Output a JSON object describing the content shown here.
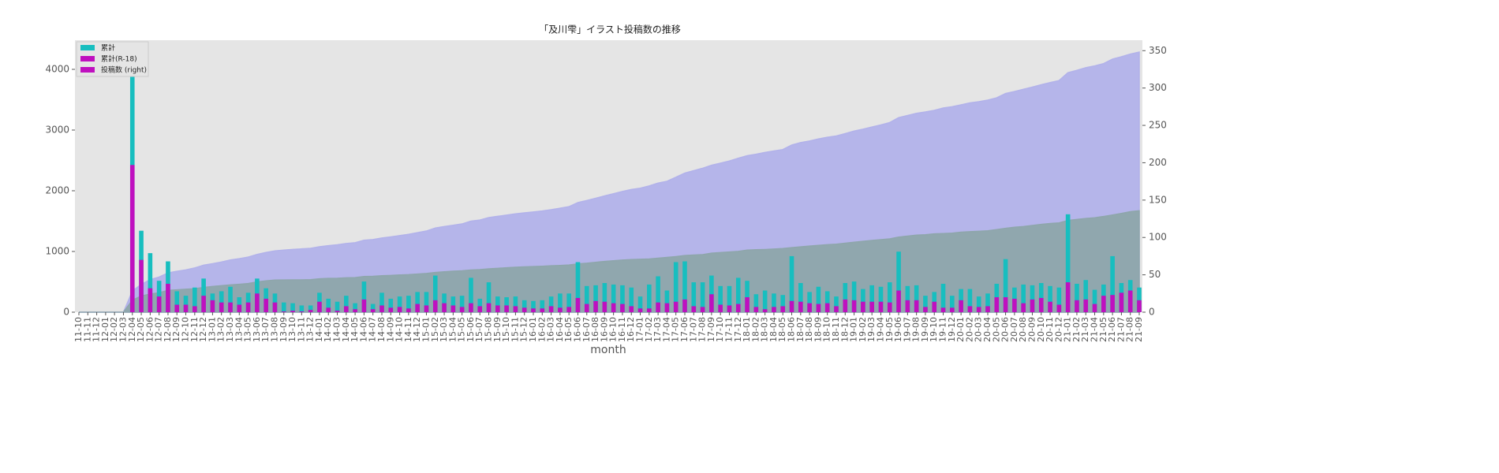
{
  "chart_data": {
    "type": "bar_area",
    "title": "「及川雫」イラスト投稿数の推移",
    "xlabel": "month",
    "categories": [
      "11-10",
      "11-11",
      "11-12",
      "12-01",
      "12-02",
      "12-03",
      "12-04",
      "12-05",
      "12-06",
      "12-07",
      "12-08",
      "12-09",
      "12-10",
      "12-11",
      "12-12",
      "13-01",
      "13-02",
      "13-03",
      "13-04",
      "13-05",
      "13-06",
      "13-07",
      "13-08",
      "13-09",
      "13-10",
      "13-11",
      "13-12",
      "14-01",
      "14-02",
      "14-03",
      "14-04",
      "14-05",
      "14-06",
      "14-07",
      "14-08",
      "14-09",
      "14-10",
      "14-11",
      "14-12",
      "15-01",
      "15-02",
      "15-03",
      "15-04",
      "15-05",
      "15-06",
      "15-07",
      "15-08",
      "15-09",
      "15-10",
      "15-11",
      "15-12",
      "16-01",
      "16-02",
      "16-03",
      "16-04",
      "16-05",
      "16-06",
      "16-07",
      "16-08",
      "16-09",
      "16-10",
      "16-11",
      "16-12",
      "17-01",
      "17-02",
      "17-03",
      "17-04",
      "17-05",
      "17-06",
      "17-07",
      "17-08",
      "17-09",
      "17-10",
      "17-11",
      "17-12",
      "18-01",
      "18-02",
      "18-03",
      "18-04",
      "18-05",
      "18-06",
      "18-07",
      "18-08",
      "18-09",
      "18-10",
      "18-11",
      "18-12",
      "19-01",
      "19-02",
      "19-03",
      "19-04",
      "19-05",
      "19-06",
      "19-07",
      "19-08",
      "19-09",
      "19-10",
      "19-11",
      "19-12",
      "20-01",
      "20-02",
      "20-03",
      "20-04",
      "20-05",
      "20-06",
      "20-07",
      "20-08",
      "20-09",
      "20-10",
      "20-11",
      "20-12",
      "21-01",
      "21-02",
      "21-03",
      "21-04",
      "21-05",
      "21-06",
      "21-07",
      "21-08",
      "21-09"
    ],
    "series": [
      {
        "kind": "area",
        "color": "#b2b2ea",
        "values": [
          0,
          0,
          0,
          0,
          0,
          0,
          348,
          457,
          536,
          578,
          646,
          674,
          696,
          729,
          774,
          799,
          827,
          861,
          881,
          907,
          952,
          984,
          1009,
          1022,
          1034,
          1043,
          1052,
          1078,
          1096,
          1110,
          1132,
          1144,
          1185,
          1196,
          1222,
          1240,
          1261,
          1283,
          1310,
          1337,
          1386,
          1411,
          1432,
          1454,
          1500,
          1518,
          1558,
          1579,
          1599,
          1620,
          1636,
          1651,
          1667,
          1688,
          1713,
          1738,
          1805,
          1840,
          1876,
          1915,
          1952,
          1988,
          2021,
          2042,
          2079,
          2127,
          2156,
          2223,
          2291,
          2331,
          2371,
          2420,
          2455,
          2490,
          2536,
          2578,
          2602,
          2631,
          2656,
          2679,
          2754,
          2793,
          2820,
          2854,
          2882,
          2903,
          2942,
          2983,
          3014,
          3050,
          3084,
          3124,
          3205,
          3240,
          3276,
          3298,
          3325,
          3363,
          3385,
          3416,
          3447,
          3468,
          3493,
          3531,
          3602,
          3635,
          3672,
          3708,
          3747,
          3782,
          3815,
          3946,
          3984,
          4027,
          4057,
          4094,
          4169,
          4208,
          4251,
          4284
        ]
      },
      {
        "kind": "area",
        "color": "#8ea6ab",
        "values": [
          0,
          0,
          0,
          0,
          0,
          0,
          197,
          267,
          299,
          320,
          358,
          368,
          378,
          386,
          408,
          424,
          437,
          450,
          460,
          473,
          498,
          516,
          529,
          530,
          532,
          533,
          536,
          550,
          556,
          558,
          566,
          570,
          587,
          591,
          600,
          606,
          613,
          618,
          629,
          638,
          654,
          666,
          675,
          682,
          694,
          702,
          714,
          723,
          732,
          740,
          746,
          751,
          756,
          764,
          770,
          777,
          796,
          807,
          822,
          836,
          848,
          859,
          867,
          872,
          877,
          890,
          902,
          916,
          933,
          941,
          948,
          972,
          982,
          991,
          1002,
          1022,
          1029,
          1033,
          1040,
          1048,
          1063,
          1077,
          1089,
          1100,
          1112,
          1120,
          1137,
          1153,
          1167,
          1181,
          1195,
          1208,
          1237,
          1253,
          1269,
          1276,
          1290,
          1296,
          1302,
          1318,
          1326,
          1333,
          1341,
          1361,
          1381,
          1399,
          1411,
          1428,
          1447,
          1461,
          1471,
          1511,
          1527,
          1544,
          1555,
          1577,
          1600,
          1626,
          1655,
          1671
        ]
      },
      {
        "kind": "bar",
        "axis": "y2",
        "color": "#17bebf",
        "values": [
          0,
          0,
          0,
          0,
          0,
          0,
          348,
          109,
          79,
          42,
          68,
          28,
          22,
          33,
          45,
          25,
          28,
          34,
          20,
          26,
          45,
          32,
          25,
          13,
          12,
          9,
          9,
          26,
          18,
          14,
          22,
          12,
          41,
          11,
          26,
          18,
          21,
          22,
          27,
          27,
          49,
          25,
          21,
          22,
          46,
          18,
          40,
          21,
          20,
          21,
          16,
          15,
          16,
          21,
          25,
          25,
          67,
          35,
          36,
          39,
          37,
          36,
          33,
          21,
          37,
          48,
          29,
          67,
          68,
          40,
          40,
          49,
          35,
          35,
          46,
          42,
          24,
          29,
          25,
          23,
          75,
          39,
          27,
          34,
          28,
          21,
          39,
          41,
          31,
          36,
          34,
          40,
          81,
          35,
          36,
          22,
          27,
          38,
          22,
          31,
          31,
          21,
          25,
          38,
          71,
          33,
          37,
          36,
          39,
          35,
          33,
          131,
          38,
          43,
          30,
          37,
          75,
          39,
          43,
          33
        ]
      },
      {
        "kind": "bar",
        "axis": "y2",
        "color": "#bf10bf",
        "values": [
          0,
          0,
          0,
          0,
          0,
          0,
          197,
          70,
          32,
          21,
          38,
          10,
          10,
          8,
          22,
          16,
          13,
          13,
          10,
          13,
          25,
          18,
          13,
          1,
          2,
          1,
          3,
          14,
          6,
          2,
          8,
          4,
          17,
          4,
          9,
          6,
          7,
          5,
          11,
          9,
          16,
          12,
          9,
          7,
          12,
          8,
          12,
          9,
          9,
          8,
          6,
          5,
          5,
          8,
          6,
          7,
          19,
          11,
          15,
          14,
          12,
          11,
          8,
          5,
          5,
          13,
          12,
          14,
          17,
          8,
          7,
          24,
          10,
          9,
          11,
          20,
          7,
          4,
          7,
          8,
          15,
          14,
          12,
          11,
          12,
          8,
          17,
          16,
          14,
          14,
          14,
          13,
          29,
          16,
          16,
          7,
          14,
          6,
          6,
          16,
          8,
          7,
          8,
          20,
          20,
          18,
          12,
          17,
          19,
          14,
          10,
          40,
          16,
          17,
          11,
          22,
          23,
          26,
          29,
          16
        ]
      }
    ],
    "legend": [
      {
        "name": "累計",
        "color": "#17bebf"
      },
      {
        "name": "累計(R-18)",
        "color": "#bf10bf"
      },
      {
        "name": "投稿数 (right)",
        "color": "#bf10bf"
      }
    ],
    "ylim": [
      0,
      4480
    ],
    "yticks": [
      0,
      1000,
      2000,
      3000,
      4000
    ],
    "y2lim": [
      0,
      364
    ],
    "y2ticks": [
      0,
      50,
      100,
      150,
      200,
      250,
      300,
      350
    ]
  }
}
